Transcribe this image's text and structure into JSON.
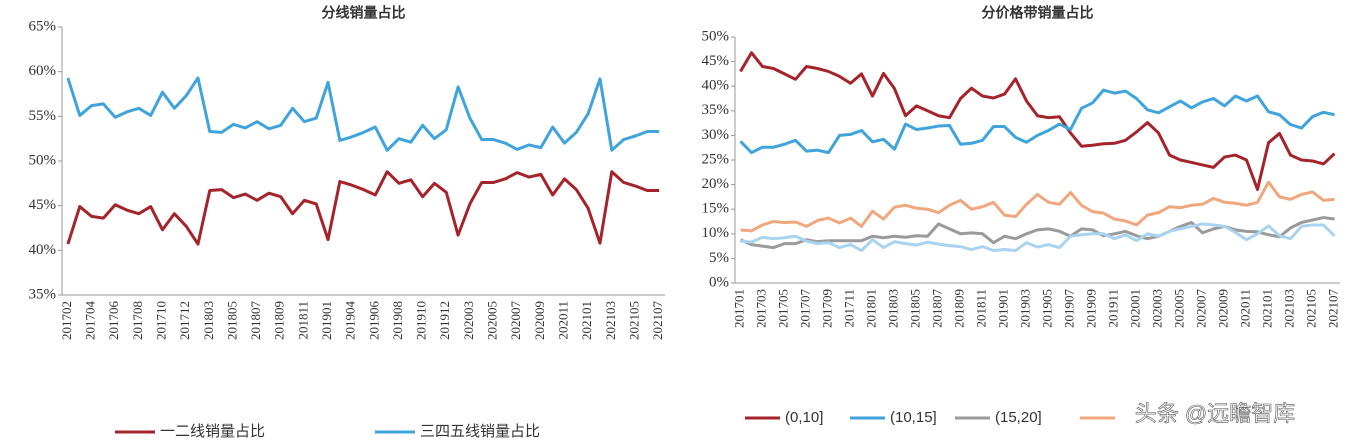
{
  "chart_data": [
    {
      "type": "line",
      "title": "分线销量占比",
      "categories": [
        "201702",
        null,
        "201704",
        null,
        "201706",
        null,
        "201708",
        null,
        "201710",
        null,
        "201712",
        null,
        "201803",
        null,
        "201805",
        null,
        "201807",
        null,
        "201809",
        null,
        "201811",
        null,
        "201901",
        null,
        "201904",
        null,
        "201906",
        null,
        "201908",
        null,
        "201910",
        null,
        "201912",
        null,
        "202003",
        null,
        "202005",
        null,
        "202007",
        null,
        "202009",
        null,
        "202011",
        null,
        "202101",
        null,
        "202103",
        null,
        "202105",
        null,
        "202107"
      ],
      "ylim": [
        35,
        65
      ],
      "yticks": [
        {
          "value": 35,
          "label": "35%"
        },
        {
          "value": 40,
          "label": "40%"
        },
        {
          "value": 45,
          "label": "45%"
        },
        {
          "value": 50,
          "label": "50%"
        },
        {
          "value": 55,
          "label": "55%"
        },
        {
          "value": 60,
          "label": "60%"
        },
        {
          "value": 65,
          "label": "65%"
        }
      ],
      "legend": "bottom",
      "series": [
        {
          "name": "一二线销量占比",
          "color": "#a5232a",
          "values": [
            40.7,
            44.9,
            43.8,
            43.6,
            45.1,
            44.5,
            44.1,
            44.9,
            42.3,
            44.1,
            42.7,
            40.7,
            46.7,
            46.8,
            45.9,
            46.3,
            45.6,
            46.4,
            46.0,
            44.1,
            45.6,
            45.2,
            41.2,
            47.7,
            47.3,
            46.8,
            46.2,
            48.8,
            47.5,
            47.9,
            46.0,
            47.5,
            46.5,
            41.7,
            45.2,
            47.6,
            47.6,
            48.0,
            48.7,
            48.2,
            48.5,
            46.2,
            48.0,
            46.8,
            44.7,
            40.8,
            48.8,
            47.6,
            47.2,
            46.7,
            46.7
          ]
        },
        {
          "name": "三四五线销量占比",
          "color": "#3fa3dc",
          "values": [
            59.3,
            55.1,
            56.2,
            56.4,
            54.9,
            55.5,
            55.9,
            55.1,
            57.7,
            55.9,
            57.3,
            59.3,
            53.3,
            53.2,
            54.1,
            53.7,
            54.4,
            53.6,
            54.0,
            55.9,
            54.4,
            54.8,
            58.8,
            52.3,
            52.7,
            53.2,
            53.8,
            51.2,
            52.5,
            52.1,
            54.0,
            52.5,
            53.5,
            58.3,
            54.8,
            52.4,
            52.4,
            52.0,
            51.3,
            51.8,
            51.5,
            53.8,
            52.0,
            53.2,
            55.3,
            59.2,
            51.2,
            52.4,
            52.8,
            53.3,
            53.3
          ]
        }
      ]
    },
    {
      "type": "line",
      "title": "分价格带销量占比",
      "categories": [
        "201701",
        null,
        "201703",
        null,
        "201705",
        null,
        "201707",
        null,
        "201709",
        null,
        "201711",
        null,
        "201801",
        null,
        "201803",
        null,
        "201805",
        null,
        "201807",
        null,
        "201809",
        null,
        "201811",
        null,
        "201901",
        null,
        "201903",
        null,
        "201905",
        null,
        "201907",
        null,
        "201909",
        null,
        "201911",
        null,
        "202001",
        null,
        "202003",
        null,
        "202005",
        null,
        "202007",
        null,
        "202009",
        null,
        "202011",
        null,
        "202101",
        null,
        "202103",
        null,
        "202105",
        null,
        "202107"
      ],
      "ylim": [
        0,
        50
      ],
      "yticks": [
        {
          "value": 0,
          "label": "0%"
        },
        {
          "value": 5,
          "label": "5%"
        },
        {
          "value": 10,
          "label": "10%"
        },
        {
          "value": 15,
          "label": "15%"
        },
        {
          "value": 20,
          "label": "20%"
        },
        {
          "value": 25,
          "label": "25%"
        },
        {
          "value": 30,
          "label": "30%"
        },
        {
          "value": 35,
          "label": "35%"
        },
        {
          "value": 40,
          "label": "40%"
        },
        {
          "value": 45,
          "label": "45%"
        },
        {
          "value": 50,
          "label": "50%"
        }
      ],
      "legend": "bottom",
      "series": [
        {
          "name": "(0,10]",
          "color": "#a5232a",
          "values": [
            43,
            46.8,
            44,
            43.6,
            42.5,
            41.4,
            44,
            43.6,
            43,
            42,
            40.6,
            42.5,
            38,
            42.6,
            39.5,
            34,
            36,
            35,
            34,
            33.6,
            37.5,
            39.6,
            38,
            37.6,
            38.4,
            41.5,
            37,
            34,
            33.6,
            33.8,
            30.5,
            27.8,
            28,
            28.3,
            28.4,
            29,
            30.7,
            32.6,
            30.5,
            26,
            25,
            24.5,
            24,
            23.5,
            25.6,
            26,
            25,
            19,
            28.5,
            30.4,
            26,
            25,
            24.8,
            24.2,
            26.3
          ]
        },
        {
          "name": "(10,15]",
          "color": "#3fa3dc",
          "values": [
            28.8,
            26.5,
            27.6,
            27.6,
            28.2,
            29,
            26.8,
            27,
            26.5,
            30,
            30.2,
            31,
            28.7,
            29.2,
            27.2,
            32.3,
            31.2,
            31.5,
            31.9,
            32,
            28.2,
            28.4,
            29,
            31.8,
            31.8,
            29.6,
            28.6,
            30,
            31,
            32.3,
            31.2,
            35.5,
            36.6,
            39.2,
            38.6,
            39,
            37.5,
            35.2,
            34.6,
            35.8,
            37,
            35.6,
            36.8,
            37.5,
            36,
            38,
            37,
            38,
            34.8,
            34.2,
            32.2,
            31.5,
            33.8,
            34.7,
            34.2
          ]
        },
        {
          "name": "(15,20]",
          "color": "#9a9a9a",
          "values": [
            8.8,
            7.8,
            7.5,
            7.2,
            8,
            8,
            8.8,
            8.4,
            8.6,
            8.6,
            8.6,
            8.6,
            9.5,
            9.2,
            9.5,
            9.3,
            9.6,
            9.5,
            12,
            11,
            10,
            10.2,
            10,
            8.2,
            9.5,
            9,
            10,
            10.8,
            11,
            10.5,
            9.5,
            11,
            10.8,
            9.6,
            10,
            10.5,
            9.6,
            9,
            9.5,
            10.5,
            11.5,
            12.3,
            10.2,
            11,
            11.5,
            10.8,
            10.5,
            10.4,
            9.8,
            9.4,
            11.2,
            12.3,
            12.8,
            13.3,
            13
          ]
        },
        {
          "color": "#f0a77e",
          "values": [
            10.8,
            10.6,
            11.8,
            12.5,
            12.3,
            12.4,
            11.5,
            12.7,
            13.2,
            12.2,
            13.2,
            11.5,
            14.6,
            13,
            15.4,
            15.8,
            15.2,
            15,
            14.3,
            15.8,
            16.8,
            15,
            15.5,
            16.4,
            13.8,
            13.5,
            16,
            18,
            16.4,
            16,
            18.4,
            15.8,
            14.5,
            14.2,
            13,
            12.6,
            11.8,
            13.8,
            14.3,
            15.5,
            15.3,
            15.8,
            16,
            17.2,
            16.4,
            16.2,
            15.8,
            16.4,
            20.5,
            17.5,
            17,
            18,
            18.5,
            16.8,
            17
          ]
        },
        {
          "color": "#a9d3ef",
          "values": [
            8.5,
            8.3,
            9.3,
            9,
            9.2,
            9.5,
            8.5,
            8,
            8.2,
            7.2,
            7.8,
            6.6,
            8.8,
            7.2,
            8.4,
            8,
            7.7,
            8.3,
            7.9,
            7.6,
            7.4,
            6.8,
            7.4,
            6.6,
            6.8,
            6.6,
            8.2,
            7.3,
            7.8,
            7.2,
            9.5,
            9.8,
            10,
            10,
            9,
            9.8,
            8.6,
            10,
            9.5,
            10.5,
            11,
            11.5,
            12,
            11.8,
            11.5,
            10.3,
            8.8,
            10,
            11.6,
            9.6,
            9,
            11.5,
            11.8,
            11.8,
            9.6
          ]
        }
      ]
    }
  ],
  "watermark": "头条 @远瞻智库"
}
